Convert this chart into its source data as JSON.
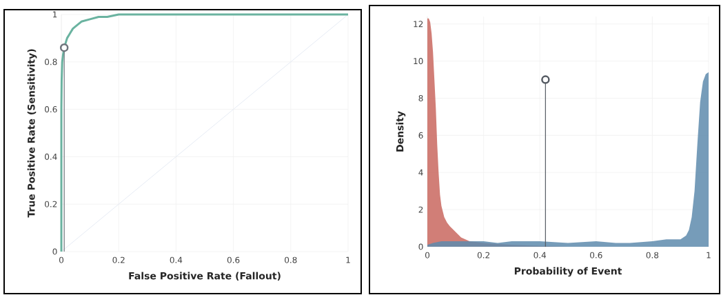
{
  "chart_data": [
    {
      "type": "line",
      "xlabel": "False Positive Rate (Fallout)",
      "ylabel": "True Positive Rate (Sensitivity)",
      "xlim": [
        0,
        1
      ],
      "ylim": [
        0,
        1
      ],
      "xticks": [
        0,
        0.2,
        0.4,
        0.6,
        0.8,
        1
      ],
      "yticks": [
        0,
        0.2,
        0.4,
        0.6,
        0.8,
        1
      ],
      "grid": true,
      "series": [
        {
          "color": "#e6ebf4",
          "x": [
            0,
            1
          ],
          "values": [
            0,
            1
          ]
        },
        {
          "color": "#6ab3a0",
          "x": [
            0,
            0,
            0.001,
            0.003,
            0.006,
            0.01,
            0.015,
            0.02,
            0.03,
            0.04,
            0.05,
            0.07,
            0.1,
            0.13,
            0.16,
            0.2,
            0.3,
            0.4,
            0.6,
            0.8,
            1
          ],
          "values": [
            0,
            0.6,
            0.72,
            0.8,
            0.83,
            0.86,
            0.88,
            0.9,
            0.92,
            0.94,
            0.95,
            0.97,
            0.98,
            0.99,
            0.99,
            1,
            1,
            1,
            1,
            1,
            1
          ]
        },
        {
          "type": "lollipop",
          "color": "#6f747c",
          "marker": "circle",
          "x": [
            0.01
          ],
          "values": [
            0.86
          ]
        }
      ]
    },
    {
      "type": "area",
      "xlabel": "Probability of Event",
      "ylabel": "Density",
      "xlim": [
        0,
        1
      ],
      "ylim": [
        0,
        12.4
      ],
      "xticks": [
        0,
        0.2,
        0.4,
        0.6,
        0.8,
        1
      ],
      "yticks": [
        0,
        2,
        4,
        6,
        8,
        10,
        12
      ],
      "grid": true,
      "series": [
        {
          "color": "#c9675f",
          "x": [
            0,
            0.005,
            0.01,
            0.015,
            0.02,
            0.025,
            0.03,
            0.035,
            0.04,
            0.045,
            0.05,
            0.06,
            0.07,
            0.08,
            0.1,
            0.12,
            0.15,
            0.2,
            0.3,
            0.5,
            1
          ],
          "values": [
            12.3,
            12.3,
            12.1,
            11.5,
            10.5,
            9,
            7.5,
            5.5,
            4,
            2.8,
            2.2,
            1.6,
            1.3,
            1.1,
            0.8,
            0.5,
            0.3,
            0.2,
            0.1,
            0,
            0
          ]
        },
        {
          "color": "#5e8bad",
          "x": [
            0,
            0.02,
            0.05,
            0.1,
            0.15,
            0.2,
            0.25,
            0.3,
            0.35,
            0.4,
            0.5,
            0.6,
            0.67,
            0.72,
            0.8,
            0.85,
            0.9,
            0.92,
            0.93,
            0.94,
            0.95,
            0.96,
            0.97,
            0.98,
            0.99,
            1
          ],
          "values": [
            0.1,
            0.2,
            0.3,
            0.3,
            0.3,
            0.3,
            0.2,
            0.3,
            0.3,
            0.3,
            0.2,
            0.3,
            0.2,
            0.2,
            0.3,
            0.4,
            0.4,
            0.6,
            0.9,
            1.6,
            3,
            5.5,
            7.8,
            8.9,
            9.3,
            9.4
          ]
        },
        {
          "type": "lollipop",
          "color": "#555b63",
          "marker": "circle",
          "x": [
            0.42
          ],
          "values": [
            9
          ]
        }
      ]
    }
  ]
}
